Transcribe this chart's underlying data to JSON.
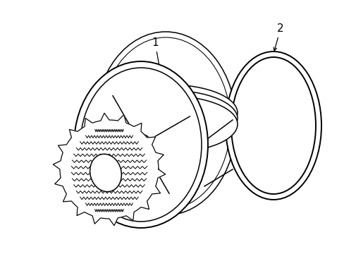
{
  "background_color": "#ffffff",
  "line_color": "#000000",
  "lw": 1.1,
  "label1_text": "1",
  "label2_text": "2",
  "fig_w": 4.89,
  "fig_h": 3.6,
  "dpi": 100
}
